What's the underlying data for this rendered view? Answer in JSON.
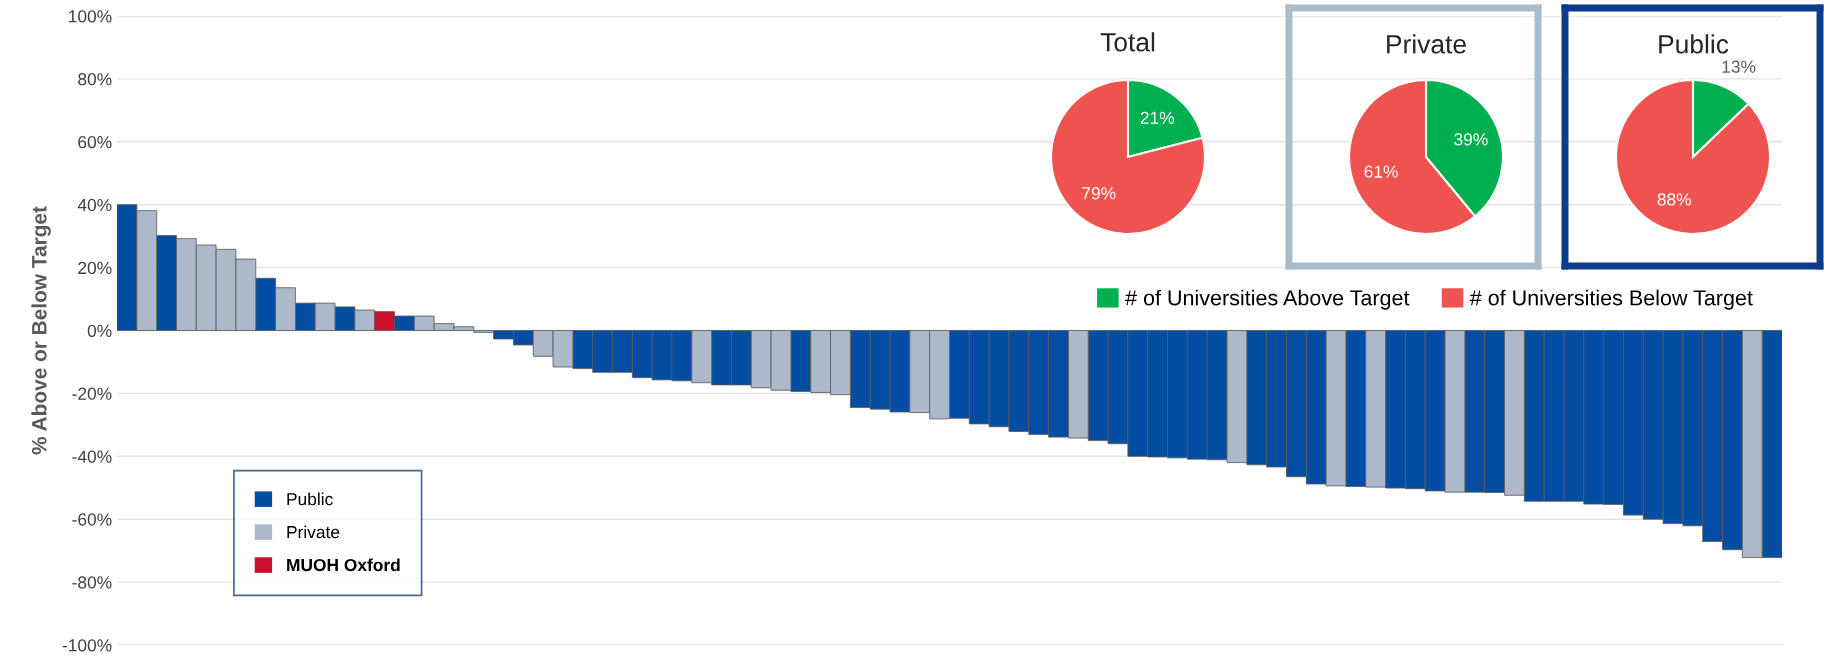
{
  "chart_data": [
    {
      "type": "bar",
      "ylabel": "% Above or Below Target",
      "stacked": true,
      "grid": "y",
      "legend": "bottom left",
      "categories": [
        null,
        null,
        null,
        null,
        null,
        null,
        null,
        null,
        null,
        null,
        null,
        null,
        null,
        null,
        null,
        null,
        null,
        null,
        null,
        null,
        null,
        null,
        null,
        null,
        null,
        null,
        null,
        null,
        null,
        null,
        null,
        null,
        null,
        null,
        null,
        null,
        null,
        null,
        null,
        null,
        null,
        null,
        null,
        null,
        null,
        null,
        null,
        null,
        null,
        null,
        null,
        null,
        null,
        null,
        null,
        null,
        null,
        null,
        null,
        null,
        null,
        null,
        null,
        null,
        null,
        null,
        null,
        null,
        null,
        null,
        null,
        null,
        null,
        null,
        null,
        null,
        null,
        null,
        null,
        null,
        null,
        null,
        null,
        null
      ],
      "series": [
        {
          "name": "Public",
          "color": "#034ea2",
          "values": [
            40,
            null,
            30.2,
            null,
            null,
            null,
            null,
            16.6,
            null,
            8.7,
            null,
            7.5,
            null,
            null,
            4.6,
            null,
            null,
            null,
            null,
            -2.7,
            -4.6,
            null,
            null,
            -12.1,
            -13.3,
            -13.3,
            -15.0,
            -15.7,
            -16.0,
            null,
            -17.3,
            -17.3,
            null,
            null,
            -19.4,
            null,
            null,
            -24.5,
            -25.0,
            -25.9,
            null,
            null,
            -27.9,
            -29.7,
            -30.6,
            -32.1,
            -33.1,
            -33.9,
            null,
            -35.0,
            -36.0,
            -40.0,
            -40.2,
            -40.5,
            -40.9,
            -41.1,
            null,
            -42.7,
            -43.4,
            -46.5,
            -48.8,
            null,
            -49.6,
            null,
            -50.1,
            -50.3,
            -51.0,
            null,
            -51.4,
            -51.5,
            null,
            -54.3,
            -54.3,
            -54.3,
            -55.2,
            -55.3,
            -58.7,
            -60.0,
            -61.4,
            -62.1,
            -67.1,
            -69.7,
            null,
            -72.2
          ]
        },
        {
          "name": "Private",
          "color": "#adb9ca",
          "values": [
            null,
            38.1,
            null,
            29.2,
            27.2,
            25.8,
            22.7,
            null,
            13.6,
            null,
            8.7,
            null,
            6.5,
            null,
            null,
            4.6,
            2.2,
            1.2,
            -0.6,
            null,
            null,
            -8.2,
            -11.6,
            null,
            null,
            null,
            null,
            null,
            null,
            -16.6,
            null,
            null,
            -18.2,
            -19.0,
            null,
            -19.7,
            -20.4,
            null,
            null,
            null,
            -26.1,
            -28.1,
            null,
            null,
            null,
            null,
            null,
            null,
            -34.2,
            null,
            null,
            null,
            null,
            null,
            null,
            null,
            -42.0,
            null,
            null,
            null,
            null,
            -49.4,
            null,
            -49.8,
            null,
            null,
            null,
            -51.4,
            null,
            null,
            -52.4,
            null,
            null,
            null,
            null,
            null,
            null,
            null,
            null,
            null,
            null,
            null,
            -72.2,
            null
          ]
        },
        {
          "name": "MUOH Oxford",
          "color": "#c8102e",
          "values": [
            null,
            null,
            null,
            null,
            null,
            null,
            null,
            null,
            null,
            null,
            null,
            null,
            null,
            6.0,
            null,
            null,
            null,
            null,
            null,
            null,
            null,
            null,
            null,
            null,
            null,
            null,
            null,
            null,
            null,
            null,
            null,
            null,
            null,
            null,
            null,
            null,
            null,
            null,
            null,
            null,
            null,
            null,
            null,
            null,
            null,
            null,
            null,
            null,
            null,
            null,
            null,
            null,
            null,
            null,
            null,
            null,
            null,
            null,
            null,
            null,
            null,
            null,
            null,
            null,
            null,
            null,
            null,
            null,
            null,
            null,
            null,
            null,
            null,
            null,
            null,
            null,
            null,
            null,
            null,
            null,
            null,
            null,
            null,
            null
          ]
        }
      ],
      "ylim": [
        -100,
        100
      ],
      "yticks": [
        {
          "value": -100,
          "label": "-100%"
        },
        {
          "value": -80,
          "label": "-80%"
        },
        {
          "value": -60,
          "label": "-60%"
        },
        {
          "value": -40,
          "label": "-40%"
        },
        {
          "value": -20,
          "label": "-20%"
        },
        {
          "value": 0,
          "label": "0%"
        },
        {
          "value": 20,
          "label": "20%"
        },
        {
          "value": 40,
          "label": "40%"
        },
        {
          "value": 60,
          "label": "60%"
        },
        {
          "value": 80,
          "label": "80%"
        },
        {
          "value": 100,
          "label": "100%"
        }
      ]
    },
    {
      "type": "pie",
      "title": "Total",
      "categories": [
        "# of Universities Above Target",
        "# of Universities Below Target"
      ],
      "values": [
        21,
        79
      ],
      "colors": [
        "#00b050",
        "#ef5350"
      ],
      "value_labels": [
        "21%",
        "79%"
      ],
      "legend": "bottom"
    },
    {
      "type": "pie",
      "title": "Private",
      "categories": [
        null,
        null
      ],
      "values": [
        39,
        61
      ],
      "colors": [
        "#00b050",
        "#ef5350"
      ],
      "value_labels": [
        "39%",
        "61%"
      ]
    },
    {
      "type": "pie",
      "title": "Public",
      "categories": [
        null,
        null
      ],
      "values": [
        13,
        88
      ],
      "colors": [
        "#00b050",
        "#ef5350"
      ],
      "value_labels": [
        "13%",
        "88%"
      ]
    }
  ]
}
